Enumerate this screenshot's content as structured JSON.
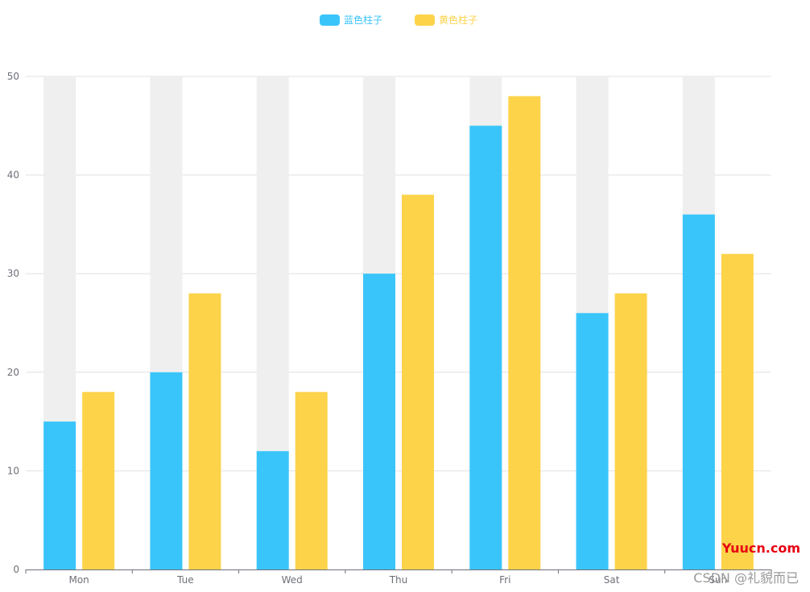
{
  "chart_data": {
    "type": "bar",
    "categories": [
      "Mon",
      "Tue",
      "Wed",
      "Thu",
      "Fri",
      "Sat",
      "Sun"
    ],
    "series": [
      {
        "name": "蓝色柱子",
        "color": "#3ac5fa",
        "values": [
          15,
          20,
          12,
          30,
          45,
          26,
          36
        ],
        "background_bar_color": "#efefef"
      },
      {
        "name": "黄色柱子",
        "color": "#fdd34a",
        "values": [
          18,
          28,
          18,
          38,
          48,
          28,
          32
        ]
      }
    ],
    "ylim": [
      0,
      50
    ],
    "yticks": [
      0,
      10,
      20,
      30,
      40,
      50
    ],
    "grid": true,
    "legend_position": "top-center"
  },
  "watermarks": {
    "site": "Yuucn.com",
    "csdn": "CSDN @礼貌而已"
  },
  "colors": {
    "grid": "#e0e0e0",
    "axis": "#6e7079",
    "site_watermark": "#e60012",
    "csdn_watermark": "#999999"
  }
}
